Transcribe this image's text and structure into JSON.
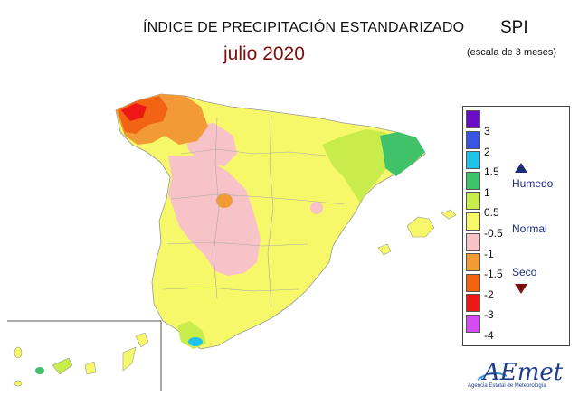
{
  "header": {
    "title": "ÍNDICE DE PRECIPITACIÓN ESTANDARIZADO",
    "subtitle": "julio 2020",
    "index_name": "SPI",
    "scale_note": "(escala de 3 meses)"
  },
  "legend": {
    "classes": [
      {
        "label": "3",
        "color": "#6a0dc7"
      },
      {
        "label": "2",
        "color": "#3a55e0"
      },
      {
        "label": "1.5",
        "color": "#20c2ea"
      },
      {
        "label": "1",
        "color": "#3fc26a"
      },
      {
        "label": "0.5",
        "color": "#c7ec4c"
      },
      {
        "label": "-0.5",
        "color": "#f7f76a"
      },
      {
        "label": "-1",
        "color": "#f7c3c9"
      },
      {
        "label": "-1.5",
        "color": "#f29a36"
      },
      {
        "label": "-2",
        "color": "#f26414"
      },
      {
        "label": "-3",
        "color": "#ee1717"
      },
      {
        "label": "-4",
        "color": "#d34cf2"
      }
    ],
    "categories": {
      "wet": "Humedo",
      "normal": "Normal",
      "dry": "Seco"
    }
  },
  "logo": {
    "text": "AEmet",
    "tagline": "Agencia Estatal de Meteorología"
  }
}
